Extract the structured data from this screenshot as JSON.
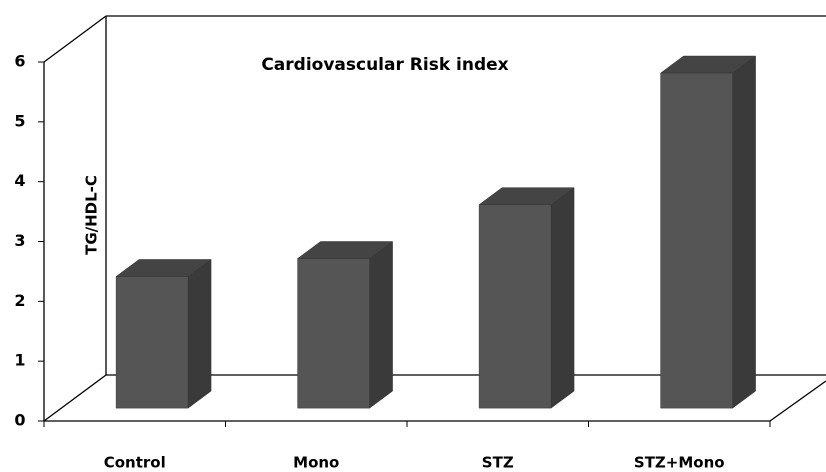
{
  "chart_data": {
    "type": "bar3d",
    "title": "Cardiovascular Risk index",
    "y_label": "TG/HDL-C",
    "categories": [
      "Control",
      "Mono",
      "STZ",
      "STZ+Mono"
    ],
    "values": [
      2.2,
      2.5,
      3.4,
      5.6
    ],
    "color": "#555555",
    "ylim": [
      0,
      6
    ],
    "yticks": [
      0,
      1,
      2,
      3,
      4,
      5,
      6
    ]
  }
}
